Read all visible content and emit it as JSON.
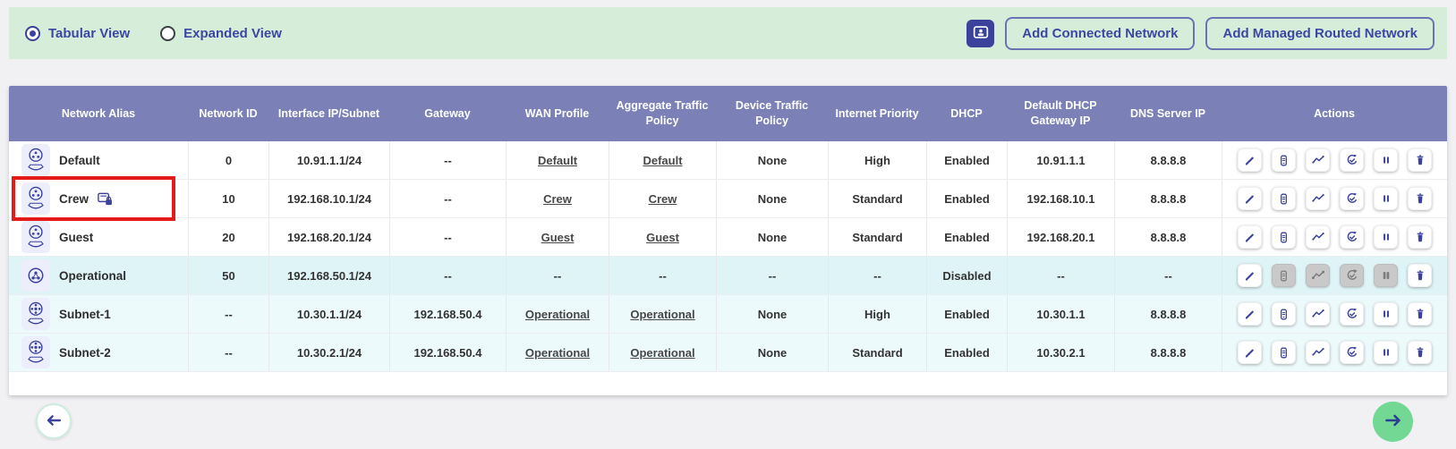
{
  "toolbar": {
    "radio_tabular_label": "Tabular View",
    "radio_tabular_selected": true,
    "radio_expanded_label": "Expanded View",
    "radio_expanded_selected": false,
    "media_button_icon": "video-icon",
    "add_connected_label": "Add Connected Network",
    "add_routed_label": "Add Managed Routed Network"
  },
  "colors": {
    "toolbar_bg": "#d6edda",
    "accent_indigo": "#3b429b",
    "header_bg": "#7b81b6",
    "operational_row_bg": "#dff4f7",
    "subnet_row_bg": "#edfafc",
    "highlight_red": "#e51a1a",
    "next_button_green": "#72d894"
  },
  "table": {
    "columns": [
      "Network Alias",
      "Network ID",
      "Interface IP/Subnet",
      "Gateway",
      "WAN Profile",
      "Aggregate Traffic Policy",
      "Device Traffic Policy",
      "Internet Priority",
      "DHCP",
      "Default DHCP Gateway IP",
      "DNS Server IP",
      "Actions"
    ],
    "action_icons": [
      "edit-icon",
      "devices-icon",
      "statistics-icon",
      "refresh-icon",
      "pause-icon",
      "delete-icon"
    ],
    "rows": [
      {
        "alias": "Default",
        "icon": "network-hand-icon",
        "badge": false,
        "highlighted": false,
        "bg": "white",
        "network_id": "0",
        "interface_ip": "10.91.1.1/24",
        "gateway": "--",
        "wan_profile": "Default",
        "aggregate_policy": "Default",
        "device_policy": "None",
        "internet_priority": "High",
        "dhcp": "Enabled",
        "dhcp_gateway_ip": "10.91.1.1",
        "dns_server_ip": "8.8.8.8",
        "disabled_actions": []
      },
      {
        "alias": "Crew",
        "icon": "network-hand-icon",
        "badge": true,
        "badge_icon": "captive-portal-lock-icon",
        "highlighted": true,
        "bg": "white",
        "network_id": "10",
        "interface_ip": "192.168.10.1/24",
        "gateway": "--",
        "wan_profile": "Crew",
        "aggregate_policy": "Crew",
        "device_policy": "None",
        "internet_priority": "Standard",
        "dhcp": "Enabled",
        "dhcp_gateway_ip": "192.168.10.1",
        "dns_server_ip": "8.8.8.8",
        "disabled_actions": []
      },
      {
        "alias": "Guest",
        "icon": "network-hand-icon",
        "badge": false,
        "highlighted": false,
        "bg": "white",
        "network_id": "20",
        "interface_ip": "192.168.20.1/24",
        "gateway": "--",
        "wan_profile": "Guest",
        "aggregate_policy": "Guest",
        "device_policy": "None",
        "internet_priority": "Standard",
        "dhcp": "Enabled",
        "dhcp_gateway_ip": "192.168.20.1",
        "dns_server_ip": "8.8.8.8",
        "disabled_actions": []
      },
      {
        "alias": "Operational",
        "icon": "network-icon",
        "badge": false,
        "highlighted": false,
        "bg": "cyan",
        "network_id": "50",
        "interface_ip": "192.168.50.1/24",
        "gateway": "--",
        "wan_profile": "--",
        "aggregate_policy": "--",
        "device_policy": "--",
        "internet_priority": "--",
        "dhcp": "Disabled",
        "dhcp_gateway_ip": "--",
        "dns_server_ip": "--",
        "disabled_actions": [
          1,
          2,
          3,
          4
        ]
      },
      {
        "alias": "Subnet-1",
        "icon": "subnet-hand-icon",
        "badge": false,
        "highlighted": false,
        "bg": "cyan-light",
        "network_id": "--",
        "interface_ip": "10.30.1.1/24",
        "gateway": "192.168.50.4",
        "wan_profile": "Operational",
        "aggregate_policy": "Operational",
        "device_policy": "None",
        "internet_priority": "High",
        "dhcp": "Enabled",
        "dhcp_gateway_ip": "10.30.1.1",
        "dns_server_ip": "8.8.8.8",
        "disabled_actions": []
      },
      {
        "alias": "Subnet-2",
        "icon": "subnet-hand-icon",
        "badge": false,
        "highlighted": false,
        "bg": "cyan-light",
        "network_id": "--",
        "interface_ip": "10.30.2.1/24",
        "gateway": "192.168.50.4",
        "wan_profile": "Operational",
        "aggregate_policy": "Operational",
        "device_policy": "None",
        "internet_priority": "Standard",
        "dhcp": "Enabled",
        "dhcp_gateway_ip": "10.30.2.1",
        "dns_server_ip": "8.8.8.8",
        "disabled_actions": []
      }
    ]
  },
  "pagination": {
    "prev_icon": "arrow-left-icon",
    "next_icon": "arrow-right-icon"
  }
}
